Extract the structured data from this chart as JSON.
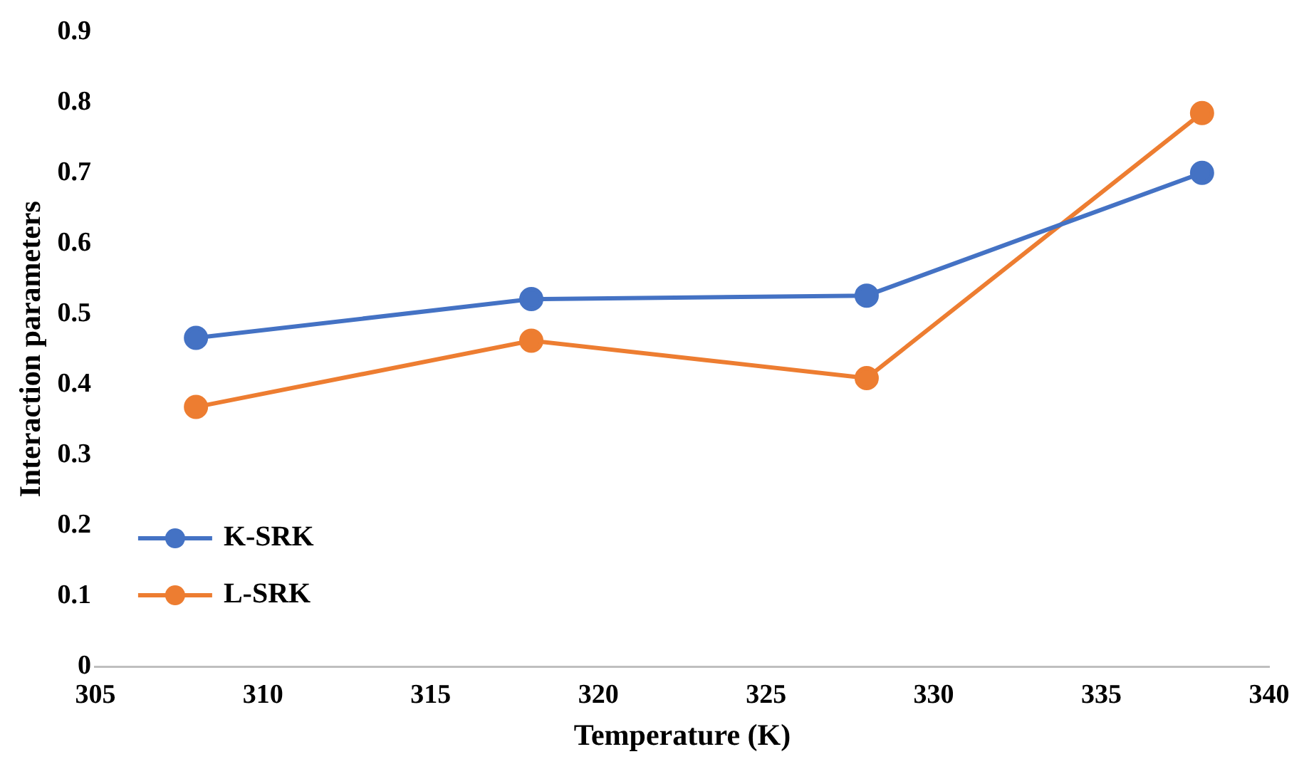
{
  "chart_data": {
    "type": "line",
    "xlabel": "Temperature (K)",
    "ylabel": "Interaction parameters",
    "x": [
      308,
      318,
      328,
      338
    ],
    "series": [
      {
        "name": "K-SRK",
        "color": "#4472c4",
        "values": [
          0.466,
          0.521,
          0.526,
          0.7
        ]
      },
      {
        "name": "L-SRK",
        "color": "#ed7d31",
        "values": [
          0.368,
          0.462,
          0.409,
          0.785
        ]
      }
    ],
    "xlim": [
      305,
      340
    ],
    "xticks": [
      305,
      310,
      315,
      320,
      325,
      330,
      335,
      340
    ],
    "ylim": [
      0,
      0.9
    ],
    "yticks": [
      0,
      0.1,
      0.2,
      0.3,
      0.4,
      0.5,
      0.6,
      0.7,
      0.8,
      0.9
    ],
    "grid": false,
    "legend": "bottom left",
    "marker": "circle",
    "line_style": "solid"
  }
}
